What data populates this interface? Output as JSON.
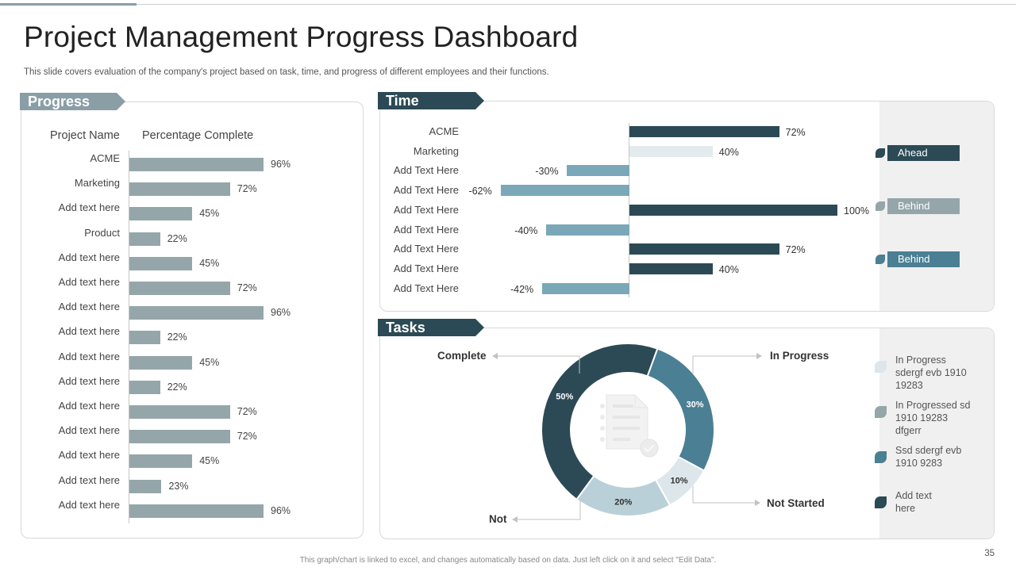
{
  "title": "Project Management Progress Dashboard",
  "subtitle": "This slide covers evaluation of the company's project based on task, time, and progress of different employees and their functions.",
  "sections": {
    "progress": "Progress",
    "time": "Time",
    "tasks": "Tasks"
  },
  "progress": {
    "col_name": "Project Name",
    "col_pct": "Percentage Complete",
    "rows": [
      {
        "label": "ACME",
        "value": 96,
        "value_label": "96%"
      },
      {
        "label": "Marketing",
        "value": 72,
        "value_label": "72%"
      },
      {
        "label": "Add text here",
        "value": 45,
        "value_label": "45%"
      },
      {
        "label": "Product",
        "value": 22,
        "value_label": "22%"
      },
      {
        "label": "Add text here",
        "value": 45,
        "value_label": "45%"
      },
      {
        "label": "Add text here",
        "value": 72,
        "value_label": "72%"
      },
      {
        "label": "Add text here",
        "value": 96,
        "value_label": "96%"
      },
      {
        "label": "Add text here",
        "value": 22,
        "value_label": "22%"
      },
      {
        "label": "Add text here",
        "value": 45,
        "value_label": "45%"
      },
      {
        "label": "Add text here",
        "value": 22,
        "value_label": "22%"
      },
      {
        "label": "Add text here",
        "value": 72,
        "value_label": "72%"
      },
      {
        "label": "Add text here",
        "value": 72,
        "value_label": "72%"
      },
      {
        "label": "Add text here",
        "value": 45,
        "value_label": "45%"
      },
      {
        "label": "Add text here",
        "value": 23,
        "value_label": "23%"
      },
      {
        "label": "Add text here",
        "value": 96,
        "value_label": "96%"
      }
    ]
  },
  "time": {
    "rows": [
      {
        "label": "ACME",
        "value": 72,
        "value_label": "72%",
        "status": "ahead"
      },
      {
        "label": "Marketing",
        "value": 40,
        "value_label": "40%",
        "status": "light"
      },
      {
        "label": "Add Text Here",
        "value": -30,
        "value_label": "-30%",
        "status": "behind"
      },
      {
        "label": "Add Text Here",
        "value": -62,
        "value_label": "-62%",
        "status": "behind"
      },
      {
        "label": "Add Text Here",
        "value": 100,
        "value_label": "100%",
        "status": "ahead"
      },
      {
        "label": "Add Text Here",
        "value": -40,
        "value_label": "-40%",
        "status": "behind"
      },
      {
        "label": "Add Text Here",
        "value": 72,
        "value_label": "72%",
        "status": "ahead"
      },
      {
        "label": "Add Text Here",
        "value": 40,
        "value_label": "40%",
        "status": "ahead"
      },
      {
        "label": "Add Text Here",
        "value": -42,
        "value_label": "-42%",
        "status": "behind"
      }
    ],
    "legend": [
      {
        "label": "Ahead",
        "color": "#2c4a55"
      },
      {
        "label": "Behind",
        "color": "#95a6aa"
      },
      {
        "label": "Behind",
        "color": "#4b7f93"
      }
    ]
  },
  "tasks": {
    "segments": [
      {
        "name": "Complete",
        "value": 50,
        "value_label": "50%",
        "color": "#2c4a55"
      },
      {
        "name": "In Progress",
        "value": 30,
        "value_label": "30%",
        "color": "#4b7f93"
      },
      {
        "name": "Not Started",
        "value": 10,
        "value_label": "10%",
        "color": "#dde6ea"
      },
      {
        "name": "Not",
        "value": 20,
        "value_label": "20%",
        "color": "#b9d0d8"
      }
    ],
    "legend": [
      {
        "text": "In Progress sdergf evb 1910 19283",
        "color": "#dde6ea"
      },
      {
        "text": "In Progressed sd 1910 19283 dfgerr",
        "color": "#95a6aa"
      },
      {
        "text": "Ssd sdergf evb 1910 9283",
        "color": "#4b7f93"
      },
      {
        "text": "Add text here",
        "color": "#2c4a55"
      }
    ]
  },
  "colors": {
    "dark": "#2c4a55",
    "mid": "#4b7f93",
    "light_blue": "#7aa8b8",
    "grey": "#95a6aa",
    "pale": "#e3ebef"
  },
  "footer": "This graph/chart is linked to excel, and changes automatically based on data. Just left click on it and select \"Edit Data\".",
  "page_number": "35"
}
